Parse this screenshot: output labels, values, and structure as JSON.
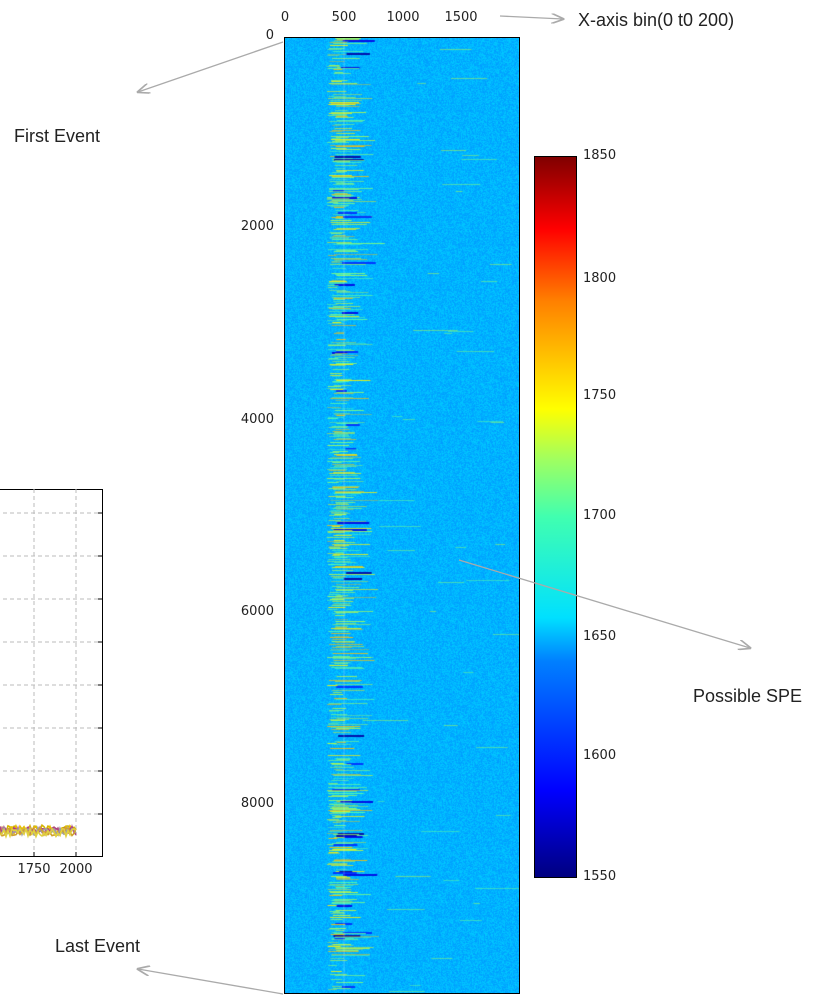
{
  "chart_data": [
    {
      "type": "heatmap",
      "title": "",
      "x_axis": {
        "position": "top",
        "ticks": [
          0,
          500,
          1000,
          1500
        ],
        "tick_labels": [
          "0",
          "500",
          "1000",
          "1500"
        ],
        "range": [
          0,
          2000
        ]
      },
      "y_axis": {
        "ticks": [
          0,
          2000,
          4000,
          6000,
          8000
        ],
        "tick_labels": [
          "0",
          "2000",
          "4000",
          "6000",
          "8000"
        ],
        "range": [
          0,
          10000
        ]
      },
      "colorbar": {
        "colormap": "jet",
        "range": [
          1550,
          1850
        ],
        "ticks": [
          1550,
          1600,
          1650,
          1700,
          1750,
          1800,
          1850
        ],
        "tick_labels": [
          "1550",
          "1600",
          "1650",
          "1700",
          "1750",
          "1800",
          "1850"
        ]
      },
      "background_level": 1640,
      "signal_band_x": [
        400,
        650
      ],
      "annotations": [
        "X-axis bin(0 t0 200)",
        "First Event",
        "Possible SPE",
        "Last Event"
      ]
    },
    {
      "type": "line",
      "x_ticks": [
        1750,
        2000
      ],
      "x_tick_labels": [
        "1750",
        "2000"
      ],
      "grid": true,
      "partial": true
    }
  ],
  "annotations": {
    "xaxis_note": "X-axis bin(0 t0 200)",
    "first_event": "First Event",
    "possible_spe": "Possible SPE",
    "last_event": "Last Event"
  },
  "colors": {
    "background": "#2ab0ec",
    "arrow": "#aaaaaa"
  }
}
